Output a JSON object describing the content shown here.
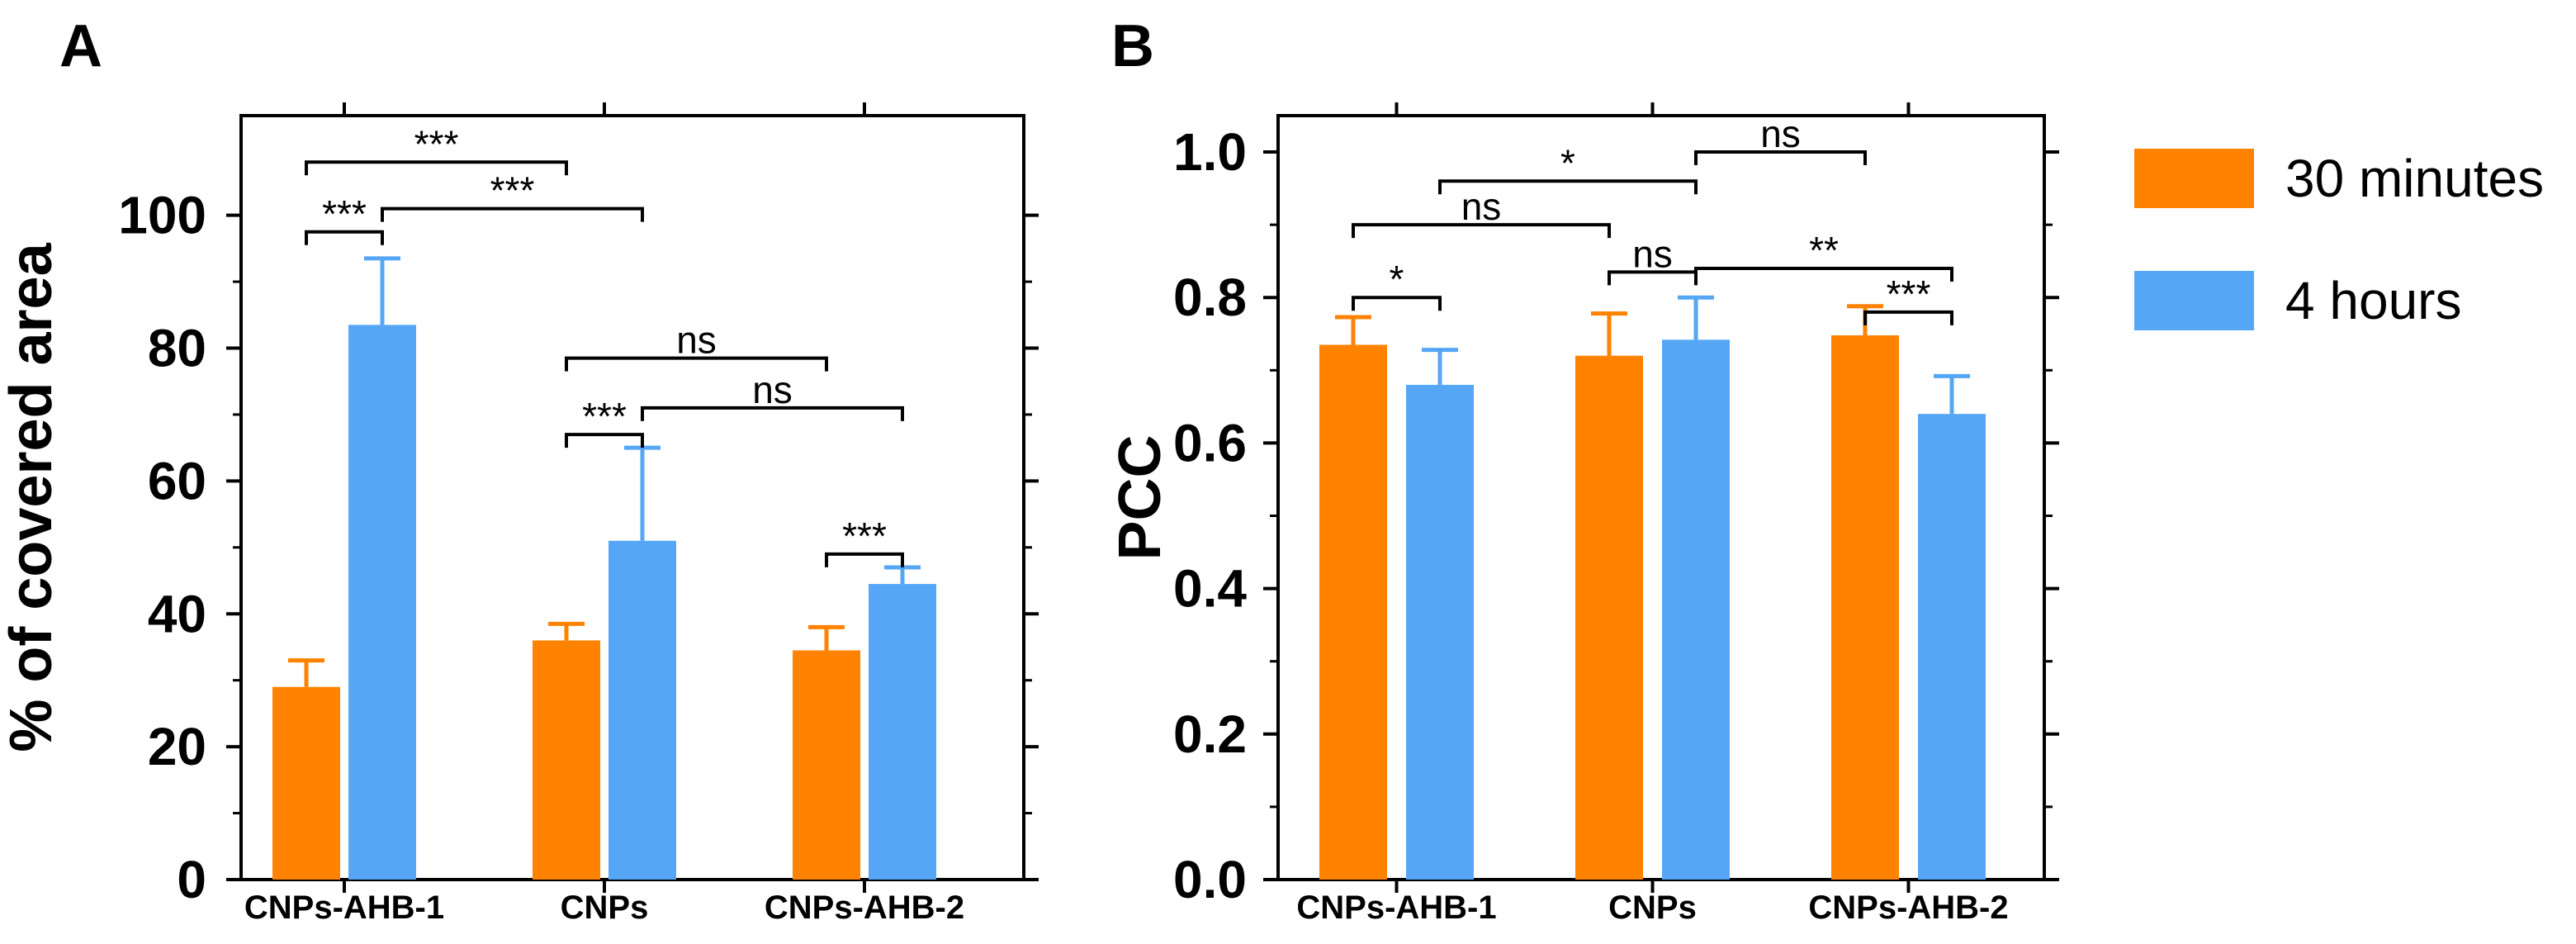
{
  "colors": {
    "orange": "#FF8200",
    "blue": "#55A7F5"
  },
  "legend": [
    {
      "label": "30 minutes",
      "color": "#FF8200"
    },
    {
      "label": "4 hours",
      "color": "#55A7F5"
    }
  ],
  "chart_data": [
    {
      "panel": "A",
      "type": "bar",
      "ylabel": "% of covered area",
      "ylim": [
        0,
        115
      ],
      "yticks": [
        "0",
        "20",
        "40",
        "60",
        "80",
        "100"
      ],
      "categories": [
        "CNPs-AHB-1",
        "CNPs",
        "CNPs-AHB-2"
      ],
      "series": [
        {
          "name": "30 minutes",
          "values": [
            29,
            36,
            34.5
          ],
          "errors": [
            4,
            2.5,
            3.5
          ]
        },
        {
          "name": "4 hours",
          "values": [
            83.5,
            51,
            44.5
          ],
          "errors": [
            10,
            14,
            2.5
          ]
        }
      ],
      "significance": [
        {
          "from": "CNPs-AHB-1|30 minutes",
          "to": "CNPs|30 minutes",
          "label": "***",
          "y": 108
        },
        {
          "from": "CNPs-AHB-1|30 minutes",
          "to": "CNPs-AHB-1|4 hours",
          "label": "***",
          "y": 97.5
        },
        {
          "from": "CNPs-AHB-1|4 hours",
          "to": "CNPs|4 hours",
          "label": "***",
          "y": 101
        },
        {
          "from": "CNPs|30 minutes",
          "to": "CNPs-AHB-2|30 minutes",
          "label": "ns",
          "y": 78.5
        },
        {
          "from": "CNPs|4 hours",
          "to": "CNPs-AHB-2|4 hours",
          "label": "ns",
          "y": 71
        },
        {
          "from": "CNPs|30 minutes",
          "to": "CNPs|4 hours",
          "label": "***",
          "y": 67
        },
        {
          "from": "CNPs-AHB-2|30 minutes",
          "to": "CNPs-AHB-2|4 hours",
          "label": "***",
          "y": 49
        }
      ]
    },
    {
      "panel": "B",
      "type": "bar",
      "ylabel": "PCC",
      "ylim": [
        0,
        1.05
      ],
      "yticks": [
        "0.0",
        "0.2",
        "0.4",
        "0.6",
        "0.8",
        "1.0"
      ],
      "categories": [
        "CNPs-AHB-1",
        "CNPs",
        "CNPs-AHB-2"
      ],
      "series": [
        {
          "name": "30 minutes",
          "values": [
            0.735,
            0.72,
            0.748
          ],
          "errors": [
            0.038,
            0.058,
            0.04
          ]
        },
        {
          "name": "4 hours",
          "values": [
            0.68,
            0.742,
            0.64
          ],
          "errors": [
            0.048,
            0.058,
            0.052
          ]
        }
      ],
      "significance": [
        {
          "from": "CNPs|4 hours",
          "to": "CNPs-AHB-2|30 minutes",
          "label": "ns",
          "y": 1.0
        },
        {
          "from": "CNPs-AHB-1|4 hours",
          "to": "CNPs|4 hours",
          "label": "*",
          "y": 0.96
        },
        {
          "from": "CNPs-AHB-1|30 minutes",
          "to": "CNPs|30 minutes",
          "label": "ns",
          "y": 0.9
        },
        {
          "from": "CNPs|4 hours",
          "to": "CNPs-AHB-2|4 hours",
          "label": "**",
          "y": 0.84
        },
        {
          "from": "CNPs|30 minutes",
          "to": "CNPs|4 hours",
          "label": "ns",
          "y": 0.835
        },
        {
          "from": "CNPs-AHB-1|30 minutes",
          "to": "CNPs-AHB-1|4 hours",
          "label": "*",
          "y": 0.8
        },
        {
          "from": "CNPs-AHB-2|30 minutes",
          "to": "CNPs-AHB-2|4 hours",
          "label": "***",
          "y": 0.78
        }
      ]
    }
  ]
}
